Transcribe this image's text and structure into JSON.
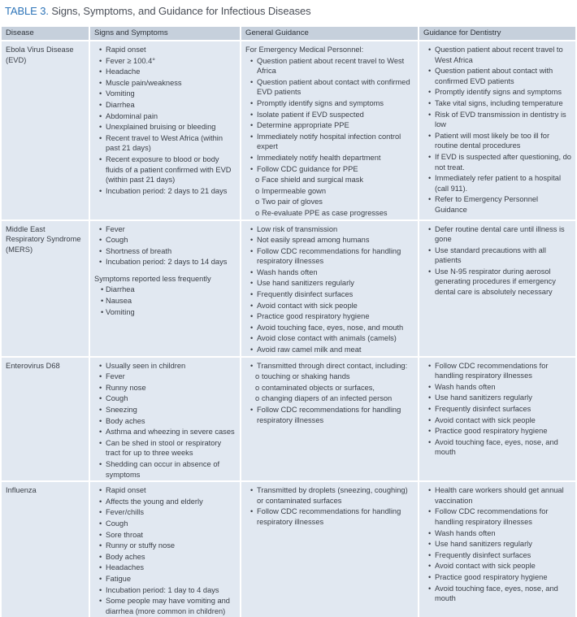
{
  "title": {
    "label": "TABLE 3.",
    "text": "Signs, Symptoms, and Guidance for Infectious Diseases"
  },
  "headers": [
    "Disease",
    "Signs and Symptoms",
    "General Guidance",
    "Guidance for Dentistry"
  ],
  "colors": {
    "title_accent": "#2d74b8",
    "header_bg": "#c6d0dc",
    "row_bg": "#e1e8f1"
  },
  "rows": [
    {
      "disease": "Ebola Virus Disease (EVD)",
      "symptoms": [
        {
          "k": "b",
          "t": "Rapid onset"
        },
        {
          "k": "b",
          "t": "Fever ≥ 100.4°"
        },
        {
          "k": "b",
          "t": "Headache"
        },
        {
          "k": "b",
          "t": "Muscle pain/weakness"
        },
        {
          "k": "b",
          "t": "Vomiting"
        },
        {
          "k": "b",
          "t": "Diarrhea"
        },
        {
          "k": "b",
          "t": "Abdominal pain"
        },
        {
          "k": "b",
          "t": "Unexplained bruising or bleeding"
        },
        {
          "k": "b",
          "t": "Recent travel to West Africa (within past 21 days)"
        },
        {
          "k": "b",
          "t": "Recent exposure to blood or body fluids of a patient confirmed with EVD (within past 21 days)"
        },
        {
          "k": "b",
          "t": "Incubation period: 2 days to 21 days"
        }
      ],
      "general": [
        {
          "k": "p",
          "t": "For Emergency Medical Personnel:"
        },
        {
          "k": "b",
          "t": "Question patient about recent travel to West Africa"
        },
        {
          "k": "b",
          "t": "Question patient about contact with confirmed EVD patients"
        },
        {
          "k": "b",
          "t": "Promptly identify signs and symptoms"
        },
        {
          "k": "b",
          "t": "Isolate patient if EVD suspected"
        },
        {
          "k": "b",
          "t": "Determine appropriate PPE"
        },
        {
          "k": "b",
          "t": "Immediately notify hospital infection control expert"
        },
        {
          "k": "b",
          "t": "Immediately notify health department"
        },
        {
          "k": "b",
          "t": "Follow CDC guidance for PPE"
        },
        {
          "k": "o",
          "t": "Face shield and surgical mask"
        },
        {
          "k": "o",
          "t": "Impermeable gown"
        },
        {
          "k": "o",
          "t": "Two pair of gloves"
        },
        {
          "k": "o",
          "t": "Re-evaluate PPE as case progresses"
        }
      ],
      "dentistry": [
        {
          "k": "b",
          "t": "Question patient about recent travel to West Africa"
        },
        {
          "k": "b",
          "t": "Question patient about contact with confirmed EVD patients"
        },
        {
          "k": "b",
          "t": "Promptly identify signs and symptoms"
        },
        {
          "k": "b",
          "t": "Take vital signs, including temperature"
        },
        {
          "k": "b",
          "t": "Risk of EVD transmission in dentistry is low"
        },
        {
          "k": "b",
          "t": "Patient will most likely be too ill for routine dental procedures"
        },
        {
          "k": "b",
          "t": "If EVD is suspected after questioning, do not treat."
        },
        {
          "k": "b",
          "t": "Immediately refer patient to a hospital (call 911)."
        },
        {
          "k": "b",
          "t": "Refer to Emergency Personnel Guidance"
        }
      ]
    },
    {
      "disease": "Middle East Respiratory Syndrome (MERS)",
      "symptoms": [
        {
          "k": "b",
          "t": "Fever"
        },
        {
          "k": "b",
          "t": "Cough"
        },
        {
          "k": "b",
          "t": "Shortness of breath"
        },
        {
          "k": "b",
          "t": "Incubation period: 2 days to 14 days"
        },
        {
          "k": "p gap",
          "t": "Symptoms reported less frequently"
        },
        {
          "k": "sb",
          "t": "Diarrhea"
        },
        {
          "k": "sb",
          "t": "Nausea"
        },
        {
          "k": "sb",
          "t": "Vomiting"
        }
      ],
      "general": [
        {
          "k": "b",
          "t": "Low risk of transmission"
        },
        {
          "k": "b",
          "t": "Not easily spread among humans"
        },
        {
          "k": "b",
          "t": "Follow CDC recommendations for handling respiratory illnesses"
        },
        {
          "k": "b",
          "t": "Wash hands often"
        },
        {
          "k": "b",
          "t": "Use hand sanitizers regularly"
        },
        {
          "k": "b",
          "t": "Frequently disinfect surfaces"
        },
        {
          "k": "b",
          "t": "Avoid contact with sick people"
        },
        {
          "k": "b",
          "t": "Practice good respiratory hygiene"
        },
        {
          "k": "b",
          "t": "Avoid touching face, eyes, nose, and mouth"
        },
        {
          "k": "b",
          "t": "Avoid close contact with animals (camels)"
        },
        {
          "k": "b",
          "t": "Avoid raw camel milk and meat"
        }
      ],
      "dentistry": [
        {
          "k": "b",
          "t": "Defer routine dental care until illness is gone"
        },
        {
          "k": "b",
          "t": "Use standard precautions with all patients"
        },
        {
          "k": "b",
          "t": "Use N-95 respirator during aerosol generating procedures if emergency dental care is absolutely necessary"
        }
      ]
    },
    {
      "disease": "Enterovirus D68",
      "symptoms": [
        {
          "k": "b",
          "t": "Usually seen in children"
        },
        {
          "k": "b",
          "t": "Fever"
        },
        {
          "k": "b",
          "t": "Runny nose"
        },
        {
          "k": "b",
          "t": "Cough"
        },
        {
          "k": "b",
          "t": "Sneezing"
        },
        {
          "k": "b",
          "t": "Body aches"
        },
        {
          "k": "b",
          "t": "Asthma and wheezing in severe cases"
        },
        {
          "k": "b",
          "t": "Can be shed in stool or respiratory tract for up to three weeks"
        },
        {
          "k": "b",
          "t": "Shedding can occur in absence of symptoms"
        }
      ],
      "general": [
        {
          "k": "b",
          "t": "Transmitted through direct contact, including:"
        },
        {
          "k": "o",
          "t": "touching or shaking hands"
        },
        {
          "k": "o",
          "t": "contaminated objects or surfaces,"
        },
        {
          "k": "o",
          "t": "changing diapers of an infected person"
        },
        {
          "k": "b",
          "t": "Follow CDC recommendations for handling respiratory illnesses"
        }
      ],
      "dentistry": [
        {
          "k": "b",
          "t": "Follow CDC recommendations for handling respiratory illnesses"
        },
        {
          "k": "b",
          "t": "Wash hands often"
        },
        {
          "k": "b",
          "t": "Use hand sanitizers regularly"
        },
        {
          "k": "b",
          "t": "Frequently disinfect surfaces"
        },
        {
          "k": "b",
          "t": "Avoid contact with sick people"
        },
        {
          "k": "b",
          "t": "Practice good respiratory hygiene"
        },
        {
          "k": "b",
          "t": "Avoid touching face, eyes, nose, and mouth"
        }
      ]
    },
    {
      "disease": "Influenza",
      "symptoms": [
        {
          "k": "b",
          "t": "Rapid onset"
        },
        {
          "k": "b",
          "t": "Affects the young and elderly"
        },
        {
          "k": "b",
          "t": "Fever/chills"
        },
        {
          "k": "b",
          "t": "Cough"
        },
        {
          "k": "b",
          "t": "Sore throat"
        },
        {
          "k": "b",
          "t": "Runny or stuffy nose"
        },
        {
          "k": "b",
          "t": "Body aches"
        },
        {
          "k": "b",
          "t": "Headaches"
        },
        {
          "k": "b",
          "t": "Fatigue"
        },
        {
          "k": "b",
          "t": "Incubation period: 1 day to 4 days"
        },
        {
          "k": "b",
          "t": "Some people may have vomiting and diarrhea (more common in children)"
        }
      ],
      "general": [
        {
          "k": "b",
          "t": "Transmitted by droplets (sneezing, coughing) or contaminated surfaces"
        },
        {
          "k": "b",
          "t": "Follow CDC recommendations for handling respiratory illnesses"
        }
      ],
      "dentistry": [
        {
          "k": "b",
          "t": "Health care workers should get annual vaccination"
        },
        {
          "k": "b",
          "t": "Follow CDC recommendations for handling respiratory illnesses"
        },
        {
          "k": "b",
          "t": "Wash hands often"
        },
        {
          "k": "b",
          "t": "Use hand sanitizers regularly"
        },
        {
          "k": "b",
          "t": "Frequently disinfect surfaces"
        },
        {
          "k": "b",
          "t": "Avoid contact with sick people"
        },
        {
          "k": "b",
          "t": "Practice good respiratory hygiene"
        },
        {
          "k": "b",
          "t": "Avoid touching face, eyes, nose, and mouth"
        }
      ]
    }
  ]
}
